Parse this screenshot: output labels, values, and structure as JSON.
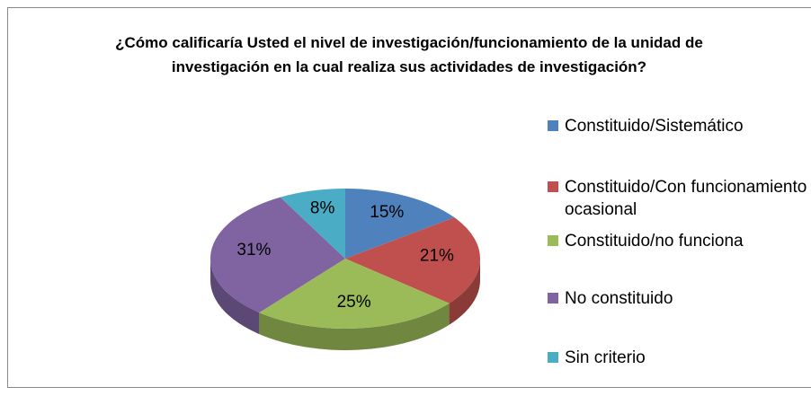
{
  "chart_data": {
    "type": "pie3d",
    "title": "¿Cómo calificaría Usted el nivel de investigación/funcionamiento de la unidad de investigación en la cual realiza sus actividades de investigación?",
    "categories": [
      "Constituido/Sistemático",
      "Constituido/Con funcionamiento ocasional",
      "Constituido/no funciona",
      "No constituido",
      "Sin criterio"
    ],
    "values": [
      15,
      21,
      25,
      31,
      8
    ],
    "value_labels": [
      "15%",
      "21%",
      "25%",
      "31%",
      "8%"
    ],
    "colors": [
      "#4f81bd",
      "#c0504d",
      "#9bbb59",
      "#8064a2",
      "#4bacc6"
    ],
    "legend": "right"
  }
}
